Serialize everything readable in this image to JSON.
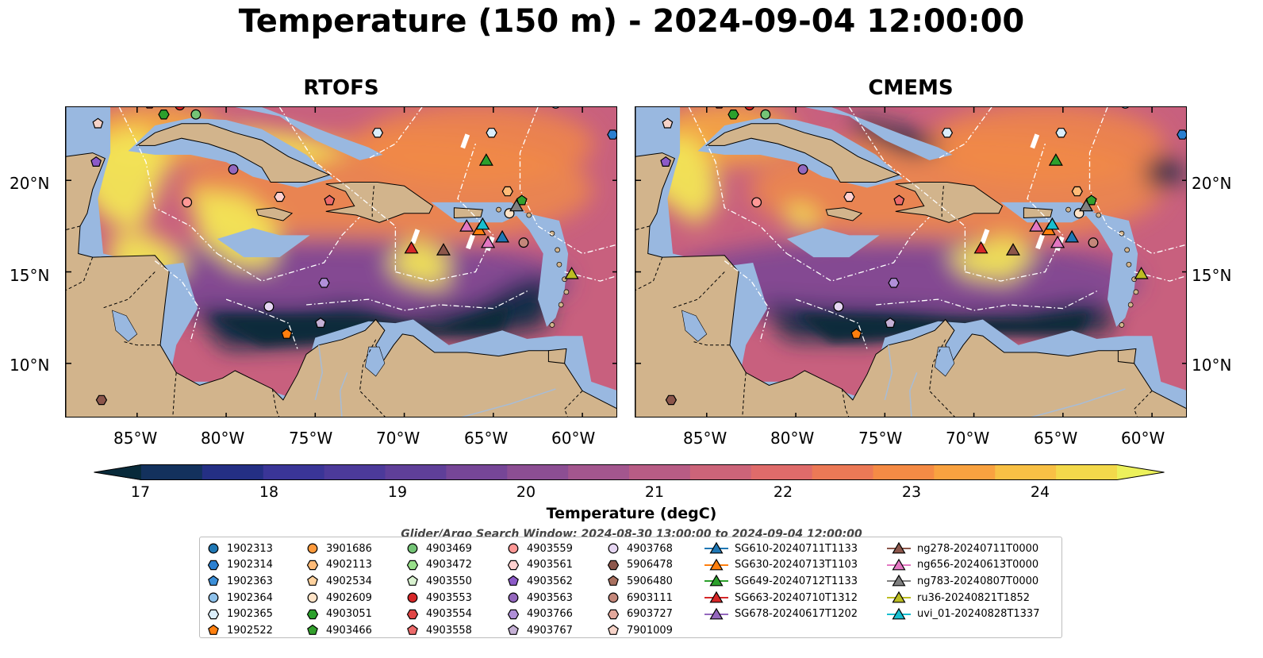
{
  "title": "Temperature (150 m) - 2024-09-04 12:00:00",
  "panels": [
    {
      "title": "RTOFS"
    },
    {
      "title": "CMEMS"
    }
  ],
  "axes": {
    "lat_ticks": [
      "20°N",
      "15°N",
      "10°N"
    ],
    "lon_ticks": [
      "85°W",
      "80°W",
      "75°W",
      "70°W",
      "65°W",
      "60°W"
    ]
  },
  "colorbar": {
    "label": "Temperature (degC)",
    "ticks": [
      "17",
      "18",
      "19",
      "20",
      "21",
      "22",
      "23",
      "24"
    ],
    "range": [
      16.5,
      24.5
    ],
    "extend": "both",
    "colors": [
      "#082a3a",
      "#13315d",
      "#242f84",
      "#3a3597",
      "#4c3a9a",
      "#5f3f99",
      "#764697",
      "#8c4e93",
      "#a3568e",
      "#b85c85",
      "#cc6479",
      "#df6b6a",
      "#ec7956",
      "#f58b45",
      "#f9a240",
      "#f8c045",
      "#f3d94b",
      "#ecf15b"
    ]
  },
  "search_window": "Glider/Argo Search Window: 2024-08-30 13:00:00 to 2024-09-04 12:00:00",
  "legend": [
    [
      {
        "label": "1902313",
        "marker": "circle",
        "color": "#1f77b4"
      },
      {
        "label": "1902314",
        "marker": "hexagon",
        "color": "#2a7fd0"
      },
      {
        "label": "1902363",
        "marker": "pentagon",
        "color": "#3c8fd8"
      },
      {
        "label": "1902364",
        "marker": "circle",
        "color": "#8ec1ea"
      },
      {
        "label": "1902365",
        "marker": "hexagon",
        "color": "#dbeefb"
      },
      {
        "label": "1902522",
        "marker": "pentagon",
        "color": "#ff7f0e"
      }
    ],
    [
      {
        "label": "3901686",
        "marker": "circle",
        "color": "#ff9a3c"
      },
      {
        "label": "4902113",
        "marker": "hexagon",
        "color": "#ffbb78"
      },
      {
        "label": "4902534",
        "marker": "pentagon",
        "color": "#ffd29e"
      },
      {
        "label": "4902609",
        "marker": "circle",
        "color": "#ffe3c7"
      },
      {
        "label": "4903051",
        "marker": "hexagon",
        "color": "#2ca02c"
      },
      {
        "label": "4903466",
        "marker": "pentagon",
        "color": "#33a02c"
      }
    ],
    [
      {
        "label": "4903469",
        "marker": "circle",
        "color": "#74c476"
      },
      {
        "label": "4903472",
        "marker": "hexagon",
        "color": "#98df8a"
      },
      {
        "label": "4903550",
        "marker": "pentagon",
        "color": "#d9f2d0"
      },
      {
        "label": "4903553",
        "marker": "circle",
        "color": "#d62728"
      },
      {
        "label": "4903554",
        "marker": "hexagon",
        "color": "#e04545"
      },
      {
        "label": "4903558",
        "marker": "pentagon",
        "color": "#ec6a6a"
      }
    ],
    [
      {
        "label": "4903559",
        "marker": "circle",
        "color": "#ff9896"
      },
      {
        "label": "4903561",
        "marker": "hexagon",
        "color": "#ffd0cf"
      },
      {
        "label": "4903562",
        "marker": "pentagon",
        "color": "#8c5ac8"
      },
      {
        "label": "4903563",
        "marker": "circle",
        "color": "#9467bd"
      },
      {
        "label": "4903766",
        "marker": "hexagon",
        "color": "#b08fd8"
      },
      {
        "label": "4903767",
        "marker": "pentagon",
        "color": "#c5b0d5"
      }
    ],
    [
      {
        "label": "4903768",
        "marker": "circle",
        "color": "#e6d6f2"
      },
      {
        "label": "5906478",
        "marker": "hexagon",
        "color": "#8c564b"
      },
      {
        "label": "5906480",
        "marker": "pentagon",
        "color": "#a9705f"
      },
      {
        "label": "6903111",
        "marker": "circle",
        "color": "#c4877a"
      },
      {
        "label": "6903727",
        "marker": "hexagon",
        "color": "#e3a89c"
      },
      {
        "label": "7901009",
        "marker": "pentagon",
        "color": "#f6d3c8"
      }
    ],
    [
      {
        "label": "SG610-20240711T1133",
        "marker": "triangle",
        "color": "#1f77b4"
      },
      {
        "label": "SG630-20240713T1103",
        "marker": "triangle",
        "color": "#ff7f0e"
      },
      {
        "label": "SG649-20240712T1133",
        "marker": "triangle",
        "color": "#2ca02c"
      },
      {
        "label": "SG663-20240710T1312",
        "marker": "triangle",
        "color": "#d62728"
      },
      {
        "label": "SG678-20240617T1202",
        "marker": "triangle",
        "color": "#9467bd"
      }
    ],
    [
      {
        "label": "ng278-20240711T0000",
        "marker": "triangle",
        "color": "#8c564b"
      },
      {
        "label": "ng656-20240613T0000",
        "marker": "triangle",
        "color": "#e377c2"
      },
      {
        "label": "ng783-20240807T0000",
        "marker": "triangle",
        "color": "#7f7f7f"
      },
      {
        "label": "ru36-20240821T1852",
        "marker": "triangle",
        "color": "#bcbd22"
      },
      {
        "label": "uvi_01-20240828T1337",
        "marker": "triangle",
        "color": "#17becf"
      }
    ]
  ],
  "map_extent": {
    "lon": [
      -89,
      -58
    ],
    "lat": [
      7,
      24
    ]
  },
  "observations": [
    {
      "id": "4903051",
      "lon": -83.5,
      "lat": 23.6
    },
    {
      "id": "4903469",
      "lon": -81.7,
      "lat": 23.6
    },
    {
      "id": "4903553",
      "lon": -82.6,
      "lat": 24.1
    },
    {
      "id": "4903554",
      "lon": -84.3,
      "lat": 24.2
    },
    {
      "id": "7901009",
      "lon": -87.2,
      "lat": 23.1
    },
    {
      "id": "4903562",
      "lon": -87.3,
      "lat": 21.0
    },
    {
      "id": "4903563",
      "lon": -79.6,
      "lat": 20.6
    },
    {
      "id": "4903561",
      "lon": -77.0,
      "lat": 19.1
    },
    {
      "id": "4903558",
      "lon": -74.2,
      "lat": 18.9
    },
    {
      "id": "4903559",
      "lon": -82.2,
      "lat": 18.8
    },
    {
      "id": "1902365",
      "lon": -71.5,
      "lat": 22.6
    },
    {
      "id": "1902365",
      "lon": -65.1,
      "lat": 22.6
    },
    {
      "id": "1902364",
      "lon": -61.5,
      "lat": 24.2
    },
    {
      "id": "1902314",
      "lon": -58.3,
      "lat": 22.5
    },
    {
      "id": "4902113",
      "lon": -64.2,
      "lat": 19.4
    },
    {
      "id": "4903466",
      "lon": -63.4,
      "lat": 18.9
    },
    {
      "id": "4902609",
      "lon": -64.1,
      "lat": 18.2
    },
    {
      "id": "6903111",
      "lon": -63.3,
      "lat": 16.6
    },
    {
      "id": "4903766",
      "lon": -74.5,
      "lat": 14.4
    },
    {
      "id": "4903768",
      "lon": -77.6,
      "lat": 13.1
    },
    {
      "id": "4903767",
      "lon": -74.7,
      "lat": 12.2
    },
    {
      "id": "1902522",
      "lon": -76.6,
      "lat": 11.6
    },
    {
      "id": "5906478",
      "lon": -87.0,
      "lat": 8.0
    },
    {
      "id": "SG649-20240712T1133",
      "lon": -65.4,
      "lat": 21.1
    },
    {
      "id": "SG663-20240710T1312",
      "lon": -69.6,
      "lat": 16.3
    },
    {
      "id": "ng278-20240711T0000",
      "lon": -67.8,
      "lat": 16.2
    },
    {
      "id": "ng656-20240613T0000",
      "lon": -66.5,
      "lat": 17.5
    },
    {
      "id": "SG630-20240713T1103",
      "lon": -65.8,
      "lat": 17.3
    },
    {
      "id": "uvi_01-20240828T1337",
      "lon": -65.6,
      "lat": 17.6
    },
    {
      "id": "ng656-20240613T0000",
      "lon": -65.3,
      "lat": 16.6
    },
    {
      "id": "SG610-20240711T1133",
      "lon": -64.5,
      "lat": 16.9
    },
    {
      "id": "ng783-20240807T0000",
      "lon": -63.7,
      "lat": 18.6
    },
    {
      "id": "ru36-20240821T1852",
      "lon": -60.6,
      "lat": 14.9
    }
  ]
}
